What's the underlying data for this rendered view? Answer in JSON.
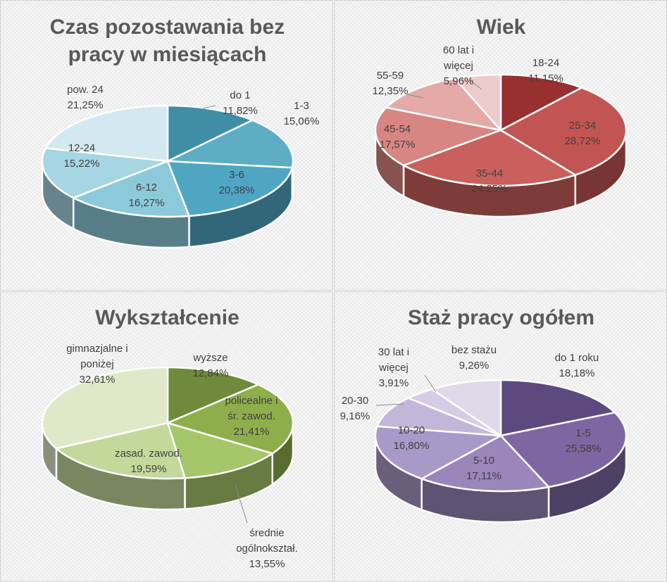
{
  "chart_data": [
    {
      "type": "pie",
      "title_lines": [
        "Czas pozostawania bez",
        "pracy w miesiącach"
      ],
      "slices": [
        {
          "category": "do 1",
          "value_label": "11,82%",
          "value": 11.82,
          "color": "#3f8ea5"
        },
        {
          "category": "1-3",
          "value_label": "15,06%",
          "value": 15.06,
          "color": "#5daec4"
        },
        {
          "category": "3-6",
          "value_label": "20,38%",
          "value": 20.38,
          "color": "#4fa6c3"
        },
        {
          "category": "6-12",
          "value_label": "16,27%",
          "value": 16.27,
          "color": "#8ccadb"
        },
        {
          "category": "12-24",
          "value_label": "15,22%",
          "value": 15.22,
          "color": "#a6d5e3"
        },
        {
          "category": "pow. 24",
          "value_label": "21,25%",
          "value": 21.25,
          "color": "#d3e8f0"
        }
      ]
    },
    {
      "type": "pie",
      "title_lines": [
        "Wiek"
      ],
      "slices": [
        {
          "category": "18-24",
          "value_label": "11,15%",
          "value": 11.15,
          "color": "#97302f"
        },
        {
          "category": "25-34",
          "value_label": "28,72%",
          "value": 28.72,
          "color": "#c25553"
        },
        {
          "category": "35-44",
          "value_label": "24,25%",
          "value": 24.25,
          "color": "#c9605e"
        },
        {
          "category": "45-54",
          "value_label": "17,57%",
          "value": 17.57,
          "color": "#d88683"
        },
        {
          "category": "55-59",
          "value_label": "12,35%",
          "value": 12.35,
          "color": "#e5aaa8"
        },
        {
          "category": "60 lat i więcej",
          "value_label": "5,96%",
          "value": 5.96,
          "color": "#edcbca"
        }
      ]
    },
    {
      "type": "pie",
      "title_lines": [
        "Wykształcenie"
      ],
      "slices": [
        {
          "category": "wyższe",
          "value_label": "12,84%",
          "value": 12.84,
          "color": "#6f8a3a"
        },
        {
          "category": "policealne i śr. zawod.",
          "value_label": "21,41%",
          "value": 21.41,
          "color": "#8eae4c"
        },
        {
          "category": "średnie ogólnokształ.",
          "value_label": "13,55%",
          "value": 13.55,
          "color": "#a6c66a"
        },
        {
          "category": "zasad. zawod.",
          "value_label": "19,59%",
          "value": 19.59,
          "color": "#c3d99b"
        },
        {
          "category": "gimnazjalne i poniżej",
          "value_label": "32,61%",
          "value": 32.61,
          "color": "#dfe9c9"
        }
      ]
    },
    {
      "type": "pie",
      "title_lines": [
        "Staż pracy ogółem"
      ],
      "slices": [
        {
          "category": "do 1 roku",
          "value_label": "18,18%",
          "value": 18.18,
          "color": "#5c4a7e"
        },
        {
          "category": "1-5",
          "value_label": "25,58%",
          "value": 25.58,
          "color": "#7d66a1"
        },
        {
          "category": "5-10",
          "value_label": "17,11%",
          "value": 17.11,
          "color": "#9a86bb"
        },
        {
          "category": "10-20",
          "value_label": "16,80%",
          "value": 16.8,
          "color": "#a999c8"
        },
        {
          "category": "20-30",
          "value_label": "9,16%",
          "value": 9.16,
          "color": "#c2b7d9"
        },
        {
          "category": "30 lat i więcej",
          "value_label": "3,91%",
          "value": 3.91,
          "color": "#d5cde5"
        },
        {
          "category": "bez stażu",
          "value_label": "9,26%",
          "value": 9.26,
          "color": "#dedae9"
        }
      ]
    }
  ]
}
